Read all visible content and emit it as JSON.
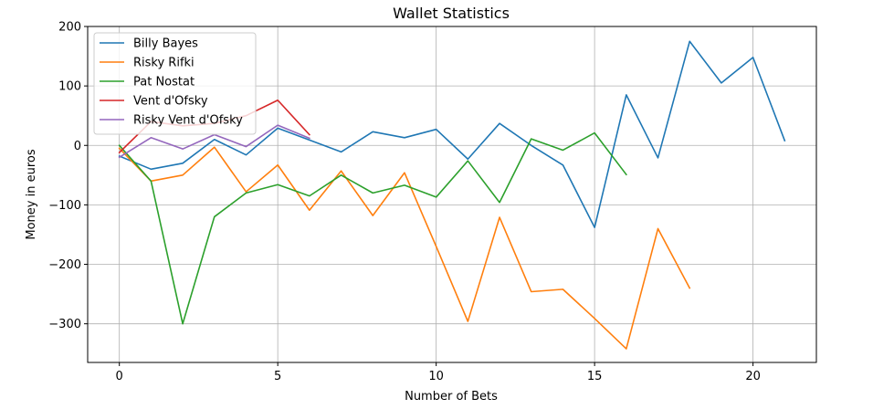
{
  "chart_data": {
    "type": "line",
    "title": "Wallet Statistics",
    "xlabel": "Number of Bets",
    "ylabel": "Money in euros",
    "xlim": [
      -1,
      22
    ],
    "ylim": [
      -365,
      200
    ],
    "xticks": [
      0,
      5,
      10,
      15,
      20
    ],
    "xtick_labels": [
      "0",
      "5",
      "10",
      "15",
      "20"
    ],
    "yticks": [
      -300,
      -200,
      -100,
      0,
      100,
      200
    ],
    "ytick_labels": [
      "−300",
      "−200",
      "−100",
      "0",
      "100",
      "200"
    ],
    "grid": true,
    "legend_position": "top-left",
    "series": [
      {
        "name": "Billy Bayes",
        "color": "#1f77b4",
        "x": [
          0,
          1,
          2,
          3,
          4,
          5,
          6,
          7,
          8,
          9,
          10,
          11,
          12,
          13,
          14,
          15,
          16,
          17,
          18,
          19,
          20,
          21
        ],
        "values": [
          -18,
          -40,
          -30,
          10,
          -16,
          29,
          9,
          -11,
          23,
          13,
          27,
          -23,
          37,
          0,
          -33,
          -138,
          85,
          -21,
          175,
          105,
          148,
          8
        ]
      },
      {
        "name": "Risky Rifki",
        "color": "#ff7f0e",
        "x": [
          0,
          1,
          2,
          3,
          4,
          5,
          6,
          7,
          8,
          9,
          10,
          11,
          12,
          13,
          14,
          15,
          16,
          17,
          18
        ],
        "values": [
          -5,
          -60,
          -50,
          -3,
          -78,
          -33,
          -109,
          -43,
          -118,
          -46,
          -170,
          -296,
          -121,
          -246,
          -242,
          -291,
          -342,
          -140,
          -240
        ]
      },
      {
        "name": "Pat Nostat",
        "color": "#2ca02c",
        "x": [
          0,
          1,
          2,
          3,
          4,
          5,
          6,
          7,
          8,
          9,
          10,
          11,
          12,
          13,
          14,
          15,
          16
        ],
        "values": [
          0,
          -60,
          -300,
          -120,
          -80,
          -66,
          -85,
          -50,
          -80,
          -67,
          -87,
          -26,
          -96,
          11,
          -8,
          21,
          -49
        ]
      },
      {
        "name": "Vent d'Ofsky",
        "color": "#d62728",
        "x": [
          0,
          1,
          2,
          3,
          4,
          5,
          6
        ],
        "values": [
          -12,
          40,
          33,
          37,
          50,
          76,
          18
        ]
      },
      {
        "name": "Risky Vent d'Ofsky",
        "color": "#9467bd",
        "x": [
          0,
          1,
          2,
          3,
          4,
          5,
          6
        ],
        "values": [
          -20,
          13,
          -6,
          18,
          -2,
          34,
          12
        ]
      }
    ]
  }
}
